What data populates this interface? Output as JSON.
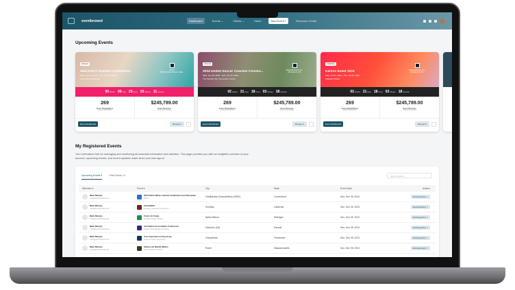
{
  "header": {
    "logo": "eventbrowed",
    "nav": [
      "Dashboard",
      "Events ⌄",
      "Clients ⌄",
      "Users",
      "New Event +",
      "Resource Center"
    ]
  },
  "upcoming": {
    "title": "Upcoming Events",
    "cards": [
      {
        "tag": "ESCA24",
        "title": "2024 ESCA Summer Conference",
        "dates": "Wed, Jun 19, 2019 - Tue, Jun 25, 2019",
        "venue": "Hotel Villa Santa Ana",
        "org": "ESCA",
        "org_sub": "67582 Pinehurst Road, Oahu...",
        "bar": "#f0206a",
        "img": "linear-gradient(120deg,#d8b9a6,#e7d7c4 40%,#8cc5c3 70%,#2ea6a6)",
        "countdown": [
          [
            "00",
            "Months"
          ],
          [
            "00",
            "Days"
          ],
          [
            "23",
            "Hours"
          ],
          [
            "03",
            "Minutes"
          ],
          [
            "11",
            "Seconds"
          ]
        ],
        "registrations": "269",
        "reg_label": "Event Registrations",
        "updated": "Updated 02/03/2024",
        "revenue": "$245,789.00",
        "rev_label": "Event Revenue"
      },
      {
        "tag": "USCC22",
        "title": "2024 United Soccer Coaches Conven...",
        "dates": "Wed, Jan 19, 2022 - Sun, Jan 23, 2022",
        "venue": "The Kansas City Convention Center",
        "org": "Regional Events Inc.",
        "org_sub": "123 Event St, NY",
        "bar": "#222",
        "img": "linear-gradient(100deg,#8a4d6c,#8e8e72 40%,#6d8a5e 70%,#9bab8a)",
        "countdown": [
          [
            "02",
            "Months"
          ],
          [
            "21",
            "Days"
          ],
          [
            "18",
            "Hours"
          ],
          [
            "03",
            "Minutes"
          ],
          [
            "18",
            "Seconds"
          ]
        ],
        "registrations": "269",
        "reg_label": "Event Registrations",
        "updated": "Updated 02/03/2024",
        "revenue": "$245,789.00",
        "rev_label": "Event Revenue"
      },
      {
        "tag": "KAREN24",
        "title": "Karens Event 2024",
        "dates": "Wed, Jul 21, 2024 - Thu, Jul 22, 2024",
        "venue": "Caesars Palace",
        "org": "Regional Events Inc.",
        "org_sub": "123 Event St, NY",
        "bar": "#222",
        "img": "linear-gradient(120deg,#ff2a4a,#ff4f3a 45%,#ff8a5c 75%,#d9a9c4)",
        "countdown": [
          [
            "02",
            "Months"
          ],
          [
            "21",
            "Days"
          ],
          [
            "18",
            "Hours"
          ],
          [
            "03",
            "Minutes"
          ],
          [
            "18",
            "Seconds"
          ]
        ],
        "registrations": "269",
        "reg_label": "Event Registrations",
        "updated": "Updated 02/03/2024",
        "revenue": "$245,789.00",
        "rev_label": "Event Revenue"
      }
    ],
    "dashboard_btn": "Event Dashboard",
    "manage_btn": "Manage ▾",
    "more_btn": "⋯"
  },
  "registered": {
    "title": "My Registered Events",
    "description": "Your centralized hub for managing and monitoring all essential information and activities. This page provides you with an insightful overview of your account, upcoming events, and recent updates made since your last sign-in.",
    "tabs": [
      {
        "label": "Upcoming Events",
        "count": "6"
      },
      {
        "label": "Past Events",
        "count": "12"
      }
    ],
    "search_placeholder": "Search Events...",
    "columns": [
      "Attendee ▾",
      "Event ▾",
      "City",
      "State",
      "Event Date",
      "Actions"
    ],
    "rows": [
      {
        "name": "Mark Murphy",
        "email": "mark@eventbrowed.com",
        "event": "2024 ESCA Winter Awards Celebration and Reception",
        "org": "ESCA",
        "city": "Vladikavkaz (Dzaudzhikau #SDR)",
        "state": "Connecticut",
        "date": "Sun, Dec 05, 2024",
        "thumb": "#2a6fd0"
      },
      {
        "name": "Mark Murphy",
        "email": "mark@eventbrowed.com",
        "event": "AdobeMAX",
        "org": "Visionary Vanguard Consortium",
        "city": "Solufsky",
        "state": "California",
        "date": "Sun, Dec 05, 2024",
        "thumb": "#6b2a1e"
      },
      {
        "name": "Mark Murphy",
        "email": "mark@eventbrowed.com",
        "event": "Fresh Air Camp",
        "org": "Pinnacle Insight Institute",
        "city": "Bahia Blanca",
        "state": "Michigan",
        "date": "Sun, Dec 05, 2024",
        "thumb": "#2a8a4a"
      },
      {
        "name": "Mark Murphy",
        "email": "mark@eventbrowed.com",
        "event": "Australian Accessibility Conference",
        "org": "Horizon Technologies Syndicate",
        "city": "Hampton (VA)",
        "state": "Kansas",
        "date": "Sun, Dec 05, 2024",
        "thumb": "#3a2a7a"
      },
      {
        "name": "Mark Murphy",
        "email": "mark@eventbrowed.com",
        "event": "User Experience Hong Kong",
        "org": "Fusion Frontier Corporation",
        "city": "Oneyabinsk",
        "state": "Tennessee",
        "date": "Sun, Dec 05, 2024",
        "thumb": "#0e3a5a"
      },
      {
        "name": "Mark Murphy",
        "email": "mark@eventbrowed.com",
        "event": "Salone del Mobile Milano",
        "org": "Apex Visionary Institute",
        "city": "Rome",
        "state": "Massachusetts",
        "date": "Sun, Dec 05, 2024",
        "thumb": "#3a3a2a"
      }
    ],
    "edit_btn": "Edit Registration ↗"
  }
}
